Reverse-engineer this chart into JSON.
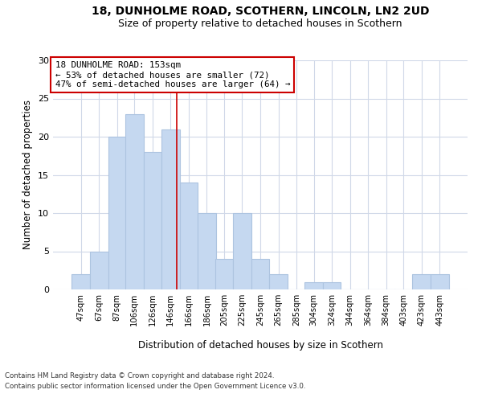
{
  "title1": "18, DUNHOLME ROAD, SCOTHERN, LINCOLN, LN2 2UD",
  "title2": "Size of property relative to detached houses in Scothern",
  "xlabel": "Distribution of detached houses by size in Scothern",
  "ylabel": "Number of detached properties",
  "categories": [
    "47sqm",
    "67sqm",
    "87sqm",
    "106sqm",
    "126sqm",
    "146sqm",
    "166sqm",
    "186sqm",
    "205sqm",
    "225sqm",
    "245sqm",
    "265sqm",
    "285sqm",
    "304sqm",
    "324sqm",
    "344sqm",
    "364sqm",
    "384sqm",
    "403sqm",
    "423sqm",
    "443sqm"
  ],
  "values": [
    2,
    5,
    20,
    23,
    18,
    21,
    14,
    10,
    4,
    10,
    4,
    2,
    0,
    1,
    1,
    0,
    0,
    0,
    0,
    2,
    2
  ],
  "bar_color": "#c5d8f0",
  "bar_edgecolor": "#adc4e0",
  "vline_x": 153,
  "vline_color": "#cc0000",
  "ylim": [
    0,
    30
  ],
  "yticks": [
    0,
    5,
    10,
    15,
    20,
    25,
    30
  ],
  "annotation_title": "18 DUNHOLME ROAD: 153sqm",
  "annotation_line1": "← 53% of detached houses are smaller (72)",
  "annotation_line2": "47% of semi-detached houses are larger (64) →",
  "annotation_box_color": "#ffffff",
  "annotation_box_edgecolor": "#cc0000",
  "footer1": "Contains HM Land Registry data © Crown copyright and database right 2024.",
  "footer2": "Contains public sector information licensed under the Open Government Licence v3.0.",
  "bg_color": "#ffffff",
  "grid_color": "#d0d8e8",
  "title1_fontsize": 10,
  "title2_fontsize": 9,
  "bin_width": 20,
  "bin_starts": [
    37,
    57,
    77,
    96,
    116,
    136,
    156,
    176,
    195,
    215,
    235,
    255,
    275,
    294,
    314,
    334,
    354,
    374,
    393,
    413,
    433
  ]
}
